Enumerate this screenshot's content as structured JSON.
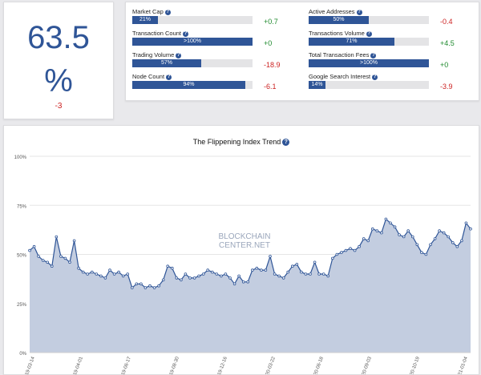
{
  "headline": {
    "value": "63.5",
    "unit": "%",
    "change": "-3"
  },
  "metrics": [
    {
      "label": "Market Cap",
      "percent": 21,
      "bar_text": "21%",
      "change": "+0.7",
      "dir": "pos"
    },
    {
      "label": "Transaction Count",
      "percent": 100,
      "bar_text": ">100%",
      "change": "+0",
      "dir": "pos"
    },
    {
      "label": "Trading Volume",
      "percent": 57,
      "bar_text": "57%",
      "change": "-18.9",
      "dir": "neg"
    },
    {
      "label": "Node Count",
      "percent": 94,
      "bar_text": "94%",
      "change": "-6.1",
      "dir": "neg"
    },
    {
      "label": "Active Addresses",
      "percent": 50,
      "bar_text": "50%",
      "change": "-0.4",
      "dir": "neg"
    },
    {
      "label": "Transactions Volume",
      "percent": 71,
      "bar_text": "71%",
      "change": "+4.5",
      "dir": "pos"
    },
    {
      "label": "Total Transaction Fees",
      "percent": 100,
      "bar_text": ">100%",
      "change": "+0",
      "dir": "pos"
    },
    {
      "label": "Google Search Interest",
      "percent": 14,
      "bar_text": "14%",
      "change": "-3.9",
      "dir": "neg"
    }
  ],
  "colors": {
    "accent": "#2f5597",
    "positive": "#1f8a2e",
    "negative": "#cc2222",
    "area_fill": "#c3cde0"
  },
  "watermark": {
    "line1": "BLOCKCHAIN",
    "line2": "CENTER.NET"
  },
  "chart_data": {
    "type": "area",
    "title": "The Flippening Index Trend",
    "ylim": [
      0,
      100
    ],
    "yticks": [
      "0%",
      "25%",
      "50%",
      "75%",
      "100%"
    ],
    "xticks": [
      "19-03-14",
      "19-04-01",
      "19-06-17",
      "19-08-30",
      "19-12-16",
      "20-03-22",
      "20-06-18",
      "20-09-03",
      "20-10-19",
      "21-01-04"
    ],
    "values": [
      52,
      54,
      49,
      47,
      46,
      44,
      59,
      49,
      48,
      46,
      57,
      43,
      41,
      40,
      41,
      40,
      39,
      38,
      42,
      40,
      41,
      39,
      40,
      33,
      35,
      35,
      33,
      34,
      33,
      34,
      37,
      44,
      43,
      38,
      37,
      40,
      38,
      38,
      39,
      40,
      42,
      41,
      40,
      39,
      40,
      38,
      35,
      39,
      36,
      36,
      42,
      43,
      42,
      42,
      49,
      40,
      39,
      38,
      41,
      44,
      45,
      41,
      40,
      40,
      46,
      40,
      40,
      39,
      48,
      50,
      51,
      52,
      53,
      52,
      54,
      58,
      57,
      63,
      62,
      61,
      68,
      66,
      64,
      60,
      59,
      62,
      59,
      55,
      51,
      50,
      55,
      58,
      62,
      61,
      59,
      56,
      54,
      57,
      66,
      63
    ],
    "grid": true
  }
}
